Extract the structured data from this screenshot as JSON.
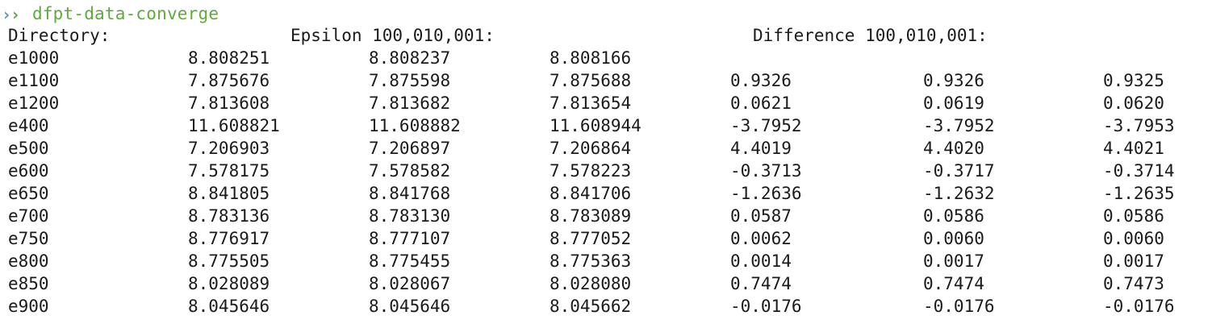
{
  "prompt": {
    "command": "dfpt-data-converge",
    "icon": "double-chevron-prompt-icon"
  },
  "header": {
    "directory": "Directory:",
    "epsilon": "Epsilon 100,010,001:",
    "difference": "Difference 100,010,001:"
  },
  "rows": [
    {
      "dir": "e1000",
      "eps": [
        "8.808251",
        "8.808237",
        "8.808166"
      ],
      "diff": [
        "",
        "",
        ""
      ]
    },
    {
      "dir": "e1100",
      "eps": [
        "7.875676",
        "7.875598",
        "7.875688"
      ],
      "diff": [
        "0.9326",
        "0.9326",
        "0.9325"
      ]
    },
    {
      "dir": "e1200",
      "eps": [
        "7.813608",
        "7.813682",
        "7.813654"
      ],
      "diff": [
        "0.0621",
        "0.0619",
        "0.0620"
      ]
    },
    {
      "dir": "e400",
      "eps": [
        "11.608821",
        "11.608882",
        "11.608944"
      ],
      "diff": [
        "-3.7952",
        "-3.7952",
        "-3.7953"
      ]
    },
    {
      "dir": "e500",
      "eps": [
        "7.206903",
        "7.206897",
        "7.206864"
      ],
      "diff": [
        "4.4019",
        "4.4020",
        "4.4021"
      ]
    },
    {
      "dir": "e600",
      "eps": [
        "7.578175",
        "7.578582",
        "7.578223"
      ],
      "diff": [
        "-0.3713",
        "-0.3717",
        "-0.3714"
      ]
    },
    {
      "dir": "e650",
      "eps": [
        "8.841805",
        "8.841768",
        "8.841706"
      ],
      "diff": [
        "-1.2636",
        "-1.2632",
        "-1.2635"
      ]
    },
    {
      "dir": "e700",
      "eps": [
        "8.783136",
        "8.783130",
        "8.783089"
      ],
      "diff": [
        "0.0587",
        "0.0586",
        "0.0586"
      ]
    },
    {
      "dir": "e750",
      "eps": [
        "8.776917",
        "8.777107",
        "8.777052"
      ],
      "diff": [
        "0.0062",
        "0.0060",
        "0.0060"
      ]
    },
    {
      "dir": "e800",
      "eps": [
        "8.775505",
        "8.775455",
        "8.775363"
      ],
      "diff": [
        "0.0014",
        "0.0017",
        "0.0017"
      ]
    },
    {
      "dir": "e850",
      "eps": [
        "8.028089",
        "8.028067",
        "8.028080"
      ],
      "diff": [
        "0.7474",
        "0.7474",
        "0.7473"
      ]
    },
    {
      "dir": "e900",
      "eps": [
        "8.045646",
        "8.045646",
        "8.045662"
      ],
      "diff": [
        "-0.0176",
        "-0.0176",
        "-0.0176"
      ]
    }
  ],
  "colors": {
    "prompt_blue": "#5b8dd6",
    "prompt_green": "#4fa83a",
    "command_green": "#5faa3c",
    "text": "#1a1a1a",
    "background": "#ffffff"
  }
}
